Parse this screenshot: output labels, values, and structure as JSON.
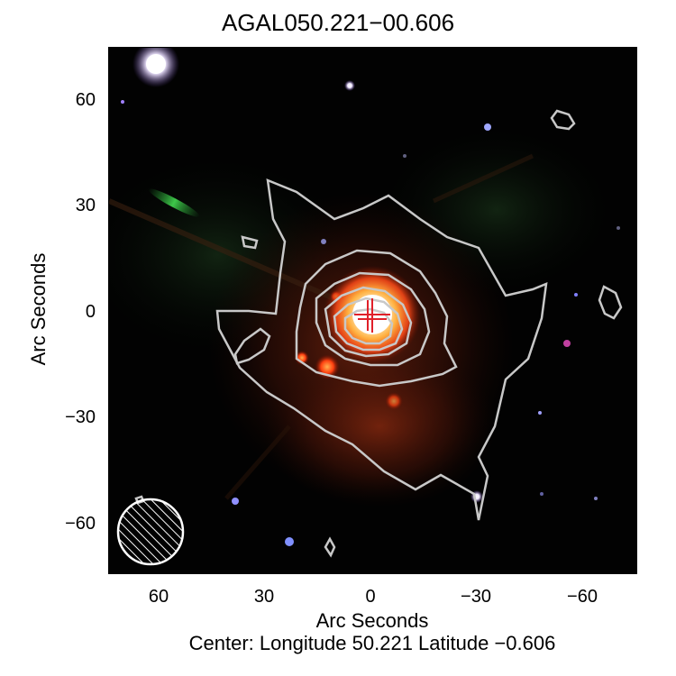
{
  "title": "AGAL050.221−00.606",
  "axes": {
    "ylabel": "Arc Seconds",
    "xlabel": "Arc Seconds",
    "yticks": [
      "60",
      "30",
      "0",
      "−30",
      "−60"
    ],
    "xticks": [
      "60",
      "30",
      "0",
      "−30",
      "−60"
    ]
  },
  "caption": "Center:  Longitude 50.221 Latitude −0.606",
  "colors": {
    "contour": "#c8c8c8",
    "marker": "#e0202a",
    "background": "#000000"
  },
  "icons": {
    "beam": "hatched-beam-ellipse-icon",
    "marker": "cross-marker-icon"
  }
}
